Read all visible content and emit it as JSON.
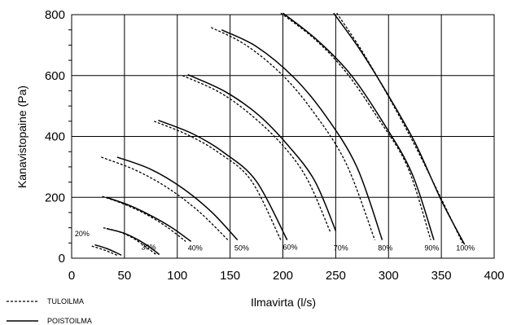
{
  "chart_data": {
    "type": "line",
    "xlabel": "Ilmavirta (l/s)",
    "ylabel": "Kanavistopaine (Pa)",
    "xlim": [
      0,
      400
    ],
    "ylim": [
      0,
      800
    ],
    "xticks": [
      0,
      50,
      100,
      150,
      200,
      250,
      300,
      350,
      400
    ],
    "yticks": [
      0,
      200,
      400,
      600,
      800
    ],
    "grid": true,
    "legend": {
      "position": "bottom-left",
      "entries": [
        {
          "label": "TULOILMA",
          "style": "dashed"
        },
        {
          "label": "POISTOILMA",
          "style": "solid"
        }
      ]
    },
    "curves": [
      {
        "label": "20%",
        "label_at": [
          3,
          72
        ],
        "tuloilma": [
          [
            19,
            40
          ],
          [
            30,
            28
          ],
          [
            38,
            17
          ],
          [
            44,
            8
          ]
        ],
        "poistoilma": [
          [
            22,
            44
          ],
          [
            33,
            32
          ],
          [
            41,
            20
          ],
          [
            47,
            10
          ]
        ]
      },
      {
        "label": "30%",
        "label_at": [
          66,
          28
        ],
        "tuloilma": [
          [
            30,
            100
          ],
          [
            45,
            87
          ],
          [
            58,
            66
          ],
          [
            70,
            38
          ],
          [
            80,
            12
          ]
        ],
        "poistoilma": [
          [
            33,
            97
          ],
          [
            48,
            84
          ],
          [
            62,
            62
          ],
          [
            74,
            36
          ],
          [
            83,
            12
          ]
        ]
      },
      {
        "label": "40%",
        "label_at": [
          110,
          25
        ],
        "tuloilma": [
          [
            29,
            203
          ],
          [
            50,
            177
          ],
          [
            70,
            145
          ],
          [
            90,
            103
          ],
          [
            108,
            55
          ]
        ],
        "poistoilma": [
          [
            33,
            200
          ],
          [
            55,
            173
          ],
          [
            75,
            140
          ],
          [
            95,
            100
          ],
          [
            113,
            55
          ]
        ]
      },
      {
        "label": "50%",
        "label_at": [
          154,
          25
        ],
        "tuloilma": [
          [
            28,
            332
          ],
          [
            60,
            290
          ],
          [
            90,
            233
          ],
          [
            120,
            155
          ],
          [
            148,
            60
          ]
        ],
        "poistoilma": [
          [
            43,
            332
          ],
          [
            75,
            292
          ],
          [
            105,
            230
          ],
          [
            133,
            150
          ],
          [
            157,
            60
          ]
        ]
      },
      {
        "label": "60%",
        "label_at": [
          200,
          28
        ],
        "tuloilma": [
          [
            78,
            450
          ],
          [
            110,
            405
          ],
          [
            140,
            345
          ],
          [
            170,
            255
          ],
          [
            198,
            60
          ]
        ],
        "poistoilma": [
          [
            82,
            453
          ],
          [
            115,
            408
          ],
          [
            145,
            345
          ],
          [
            175,
            252
          ],
          [
            204,
            60
          ]
        ]
      },
      {
        "label": "70%",
        "label_at": [
          248,
          25
        ],
        "tuloilma": [
          [
            105,
            600
          ],
          [
            140,
            545
          ],
          [
            170,
            470
          ],
          [
            200,
            370
          ],
          [
            223,
            260
          ],
          [
            245,
            85
          ]
        ],
        "poistoilma": [
          [
            110,
            603
          ],
          [
            145,
            548
          ],
          [
            177,
            470
          ],
          [
            205,
            370
          ],
          [
            230,
            255
          ],
          [
            250,
            90
          ]
        ]
      },
      {
        "label": "80%",
        "label_at": [
          290,
          25
        ],
        "tuloilma": [
          [
            132,
            758
          ],
          [
            165,
            700
          ],
          [
            200,
            600
          ],
          [
            230,
            475
          ],
          [
            260,
            310
          ],
          [
            287,
            60
          ]
        ],
        "poistoilma": [
          [
            142,
            750
          ],
          [
            175,
            695
          ],
          [
            210,
            595
          ],
          [
            240,
            470
          ],
          [
            270,
            300
          ],
          [
            294,
            60
          ]
        ]
      },
      {
        "label": "90%",
        "label_at": [
          334,
          25
        ],
        "tuloilma": [
          [
            198,
            805
          ],
          [
            230,
            720
          ],
          [
            260,
            610
          ],
          [
            290,
            460
          ],
          [
            318,
            300
          ],
          [
            340,
            60
          ]
        ],
        "poistoilma": [
          [
            200,
            805
          ],
          [
            233,
            715
          ],
          [
            265,
            600
          ],
          [
            295,
            445
          ],
          [
            322,
            280
          ],
          [
            343,
            60
          ]
        ]
      },
      {
        "label": "100%",
        "label_at": [
          364,
          25
        ],
        "tuloilma": [
          [
            251,
            805
          ],
          [
            275,
            680
          ],
          [
            300,
            530
          ],
          [
            325,
            370
          ],
          [
            350,
            195
          ],
          [
            370,
            50
          ]
        ],
        "poistoilma": [
          [
            248,
            805
          ],
          [
            272,
            690
          ],
          [
            298,
            545
          ],
          [
            325,
            380
          ],
          [
            350,
            190
          ],
          [
            372,
            45
          ]
        ]
      }
    ]
  }
}
